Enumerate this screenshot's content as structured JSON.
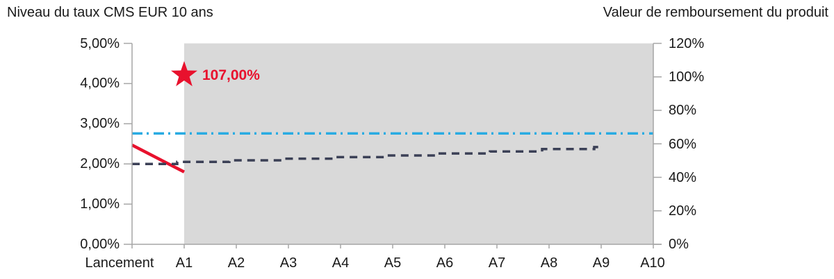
{
  "titles": {
    "left": "Niveau du taux CMS EUR 10 ans",
    "right": "Valeur de remboursement du produit"
  },
  "left_axis": {
    "labels": [
      "5,00%",
      "4,00%",
      "3,00%",
      "2,00%",
      "1,00%",
      "0,00%"
    ]
  },
  "right_axis": {
    "labels": [
      "120%",
      "100%",
      "80%",
      "60%",
      "40%",
      "20%",
      "0%"
    ]
  },
  "x_axis": {
    "categories": [
      "Lancement",
      "A1",
      "A2",
      "A3",
      "A4",
      "A5",
      "A6",
      "A7",
      "A8",
      "A9",
      "A10"
    ]
  },
  "chart_data": {
    "type": "line",
    "title_left_axis": "Niveau du taux CMS EUR 10 ans",
    "title_right_axis": "Valeur de remboursement du produit",
    "categories": [
      "Lancement",
      "A1",
      "A2",
      "A3",
      "A4",
      "A5",
      "A6",
      "A7",
      "A8",
      "A9",
      "A10"
    ],
    "left_ylim": [
      0,
      5
    ],
    "left_tick_step": 1,
    "right_ylim": [
      0,
      120
    ],
    "right_tick_step": 20,
    "grid": false,
    "shaded_region": {
      "from": "A1",
      "to": "A10",
      "color": "#d9d9d9"
    },
    "series": [
      {
        "name": "taux-cms-eur-10-ans-constate",
        "axis": "left",
        "line_style": "solid",
        "color": "#e8112d",
        "x": [
          "Lancement",
          "A1"
        ],
        "values": [
          2.47,
          1.8
        ]
      },
      {
        "name": "taux-forward-anticipe",
        "axis": "left",
        "line_style": "dashed-step",
        "color": "#3b4056",
        "x": [
          "Lancement",
          "A1",
          "A2",
          "A3",
          "A4",
          "A5",
          "A6",
          "A7",
          "A8",
          "A9"
        ],
        "values": [
          2.0,
          2.05,
          2.09,
          2.13,
          2.17,
          2.21,
          2.26,
          2.31,
          2.37,
          2.42
        ]
      },
      {
        "name": "barriere",
        "axis": "left",
        "line_style": "dash-dot",
        "color": "#29abe2",
        "x": [
          "Lancement",
          "A10"
        ],
        "values": [
          2.76,
          2.76
        ]
      }
    ],
    "annotations": [
      {
        "type": "star",
        "x": "A1",
        "label": "107,00%",
        "color": "#e8112d",
        "meaning": "valeur de remboursement"
      }
    ]
  },
  "colors": {
    "background": "#ffffff",
    "plot_shading": "#d9d9d9",
    "axis": "#a6a6a6",
    "text": "#1a1a1a",
    "accent_red": "#e8112d",
    "accent_navy": "#3b4056",
    "accent_cyan": "#29abe2"
  }
}
